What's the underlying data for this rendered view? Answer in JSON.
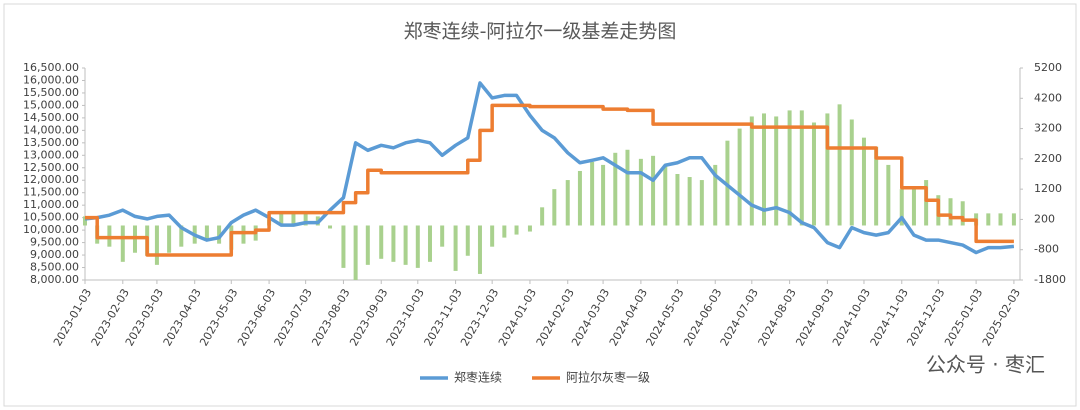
{
  "chart_data": {
    "type": "line",
    "title": "郑枣连续-阿拉尔一级基差走势图",
    "watermark": "公众号 · 枣汇",
    "x": [
      "2023-01-03",
      "2023-01-13",
      "2023-01-23",
      "2023-02-03",
      "2023-02-13",
      "2023-02-23",
      "2023-03-03",
      "2023-03-13",
      "2023-03-23",
      "2023-04-03",
      "2023-04-13",
      "2023-04-23",
      "2023-05-03",
      "2023-05-13",
      "2023-05-23",
      "2023-06-03",
      "2023-06-13",
      "2023-06-23",
      "2023-07-03",
      "2023-07-13",
      "2023-07-23",
      "2023-08-03",
      "2023-08-13",
      "2023-08-23",
      "2023-09-03",
      "2023-09-13",
      "2023-09-23",
      "2023-10-03",
      "2023-10-13",
      "2023-10-23",
      "2023-11-03",
      "2023-11-13",
      "2023-11-23",
      "2023-12-03",
      "2023-12-13",
      "2023-12-23",
      "2024-01-03",
      "2024-01-13",
      "2024-01-23",
      "2024-02-03",
      "2024-02-13",
      "2024-02-23",
      "2024-03-03",
      "2024-03-13",
      "2024-03-23",
      "2024-04-03",
      "2024-04-13",
      "2024-04-23",
      "2024-05-03",
      "2024-05-13",
      "2024-05-23",
      "2024-06-03",
      "2024-06-13",
      "2024-06-23",
      "2024-07-03",
      "2024-07-13",
      "2024-07-23",
      "2024-08-03",
      "2024-08-13",
      "2024-08-23",
      "2024-09-03",
      "2024-09-13",
      "2024-09-23",
      "2024-10-03",
      "2024-10-13",
      "2024-10-23",
      "2024-11-03",
      "2024-11-13",
      "2024-11-23",
      "2024-12-03",
      "2024-12-13",
      "2024-12-23",
      "2025-01-03",
      "2025-01-13",
      "2025-01-23",
      "2025-02-03"
    ],
    "series": [
      {
        "name": "郑枣连续",
        "color": "#5b9bd5",
        "axis": "y",
        "type": "line",
        "values": [
          10450,
          10500,
          10600,
          10800,
          10550,
          10450,
          10550,
          10600,
          10100,
          9800,
          9600,
          9700,
          10300,
          10600,
          10800,
          10500,
          10200,
          10200,
          10300,
          10300,
          10800,
          11300,
          13500,
          13200,
          13400,
          13300,
          13500,
          13600,
          13500,
          13000,
          13400,
          13700,
          15900,
          15300,
          15400,
          15400,
          14600,
          14000,
          13700,
          13100,
          12700,
          12800,
          12900,
          12600,
          12300,
          12300,
          12000,
          12600,
          12700,
          12900,
          12900,
          12200,
          11800,
          11400,
          11000,
          10800,
          10900,
          10700,
          10300,
          10100,
          9500,
          9300,
          10100,
          9900,
          9800,
          9900,
          10500,
          9800,
          9600,
          9600,
          9500,
          9400,
          9100,
          9300,
          9300,
          9350
        ]
      },
      {
        "name": "阿拉尔灰枣一级",
        "color": "#ed7d31",
        "axis": "y",
        "type": "step",
        "values": [
          10500,
          9700,
          9700,
          9700,
          9700,
          9000,
          9000,
          9000,
          9000,
          9000,
          9000,
          9000,
          9900,
          9900,
          10000,
          10700,
          10700,
          10700,
          10700,
          10700,
          10700,
          11100,
          11500,
          12400,
          12300,
          12300,
          12300,
          12300,
          12300,
          12300,
          12300,
          12800,
          14000,
          15000,
          15000,
          15000,
          14950,
          14950,
          14950,
          14950,
          14950,
          14950,
          14850,
          14850,
          14800,
          14800,
          14250,
          14250,
          14250,
          14250,
          14250,
          14250,
          14250,
          14250,
          14130,
          14130,
          14130,
          14130,
          14130,
          14130,
          13290,
          13290,
          13290,
          13290,
          12890,
          12890,
          11700,
          11700,
          11200,
          10600,
          10500,
          10400,
          9550,
          9550,
          9550,
          9550
        ]
      },
      {
        "color": "#a9d18e",
        "axis": "y2",
        "type": "bar",
        "values": [
          300,
          -600,
          -700,
          -1200,
          -900,
          -1000,
          -1300,
          -900,
          -700,
          -600,
          -500,
          -600,
          -800,
          -600,
          -500,
          200,
          400,
          400,
          400,
          300,
          -100,
          -1400,
          -1800,
          -1300,
          -1100,
          -1200,
          -1300,
          -1400,
          -1200,
          -700,
          -1500,
          -1000,
          -1600,
          -700,
          -400,
          -300,
          -200,
          600,
          1200,
          1500,
          1800,
          2100,
          2000,
          2400,
          2500,
          2200,
          2300,
          2000,
          1700,
          1600,
          1500,
          2000,
          2800,
          3200,
          3600,
          3700,
          3600,
          3800,
          3800,
          3400,
          3700,
          4000,
          3500,
          2900,
          2600,
          2000,
          1200,
          1200,
          1500,
          1000,
          900,
          800,
          400,
          400,
          400,
          400
        ]
      }
    ],
    "xlim": [
      "2023-01-03",
      "2025-02-08"
    ],
    "xticks": [
      "2023-01-03",
      "2023-02-03",
      "2023-03-03",
      "2023-04-03",
      "2023-05-03",
      "2023-06-03",
      "2023-07-03",
      "2023-08-03",
      "2023-09-03",
      "2023-10-03",
      "2023-11-03",
      "2023-12-03",
      "2024-01-03",
      "2024-02-03",
      "2024-03-03",
      "2024-04-03",
      "2024-05-03",
      "2024-06-03",
      "2024-07-03",
      "2024-08-03",
      "2024-09-03",
      "2024-10-03",
      "2024-11-03",
      "2024-12-03",
      "2025-01-03",
      "2025-02-03"
    ],
    "ylim": [
      8000,
      16500
    ],
    "yticks": [
      {
        "value": 8000,
        "label": "8,000.00"
      },
      {
        "value": 8500,
        "label": "8,500.00"
      },
      {
        "value": 9000,
        "label": "9,000.00"
      },
      {
        "value": 9500,
        "label": "9,500.00"
      },
      {
        "value": 10000,
        "label": "10,000.00"
      },
      {
        "value": 10500,
        "label": "10,500.00"
      },
      {
        "value": 11000,
        "label": "11,000.00"
      },
      {
        "value": 11500,
        "label": "11,500.00"
      },
      {
        "value": 12000,
        "label": "12,000.00"
      },
      {
        "value": 12500,
        "label": "12,500.00"
      },
      {
        "value": 13000,
        "label": "13,000.00"
      },
      {
        "value": 13500,
        "label": "13,500.00"
      },
      {
        "value": 14000,
        "label": "14,000.00"
      },
      {
        "value": 14500,
        "label": "14,500.00"
      },
      {
        "value": 15000,
        "label": "15,000.00"
      },
      {
        "value": 15500,
        "label": "15,500.00"
      },
      {
        "value": 16000,
        "label": "16,000.00"
      },
      {
        "value": 16500,
        "label": "16,500.00"
      }
    ],
    "y2lim": [
      -1800,
      5200
    ],
    "y2ticks": [
      -1800,
      -800,
      200,
      1200,
      2200,
      3200,
      4200,
      5200
    ],
    "legend": "bottom"
  }
}
